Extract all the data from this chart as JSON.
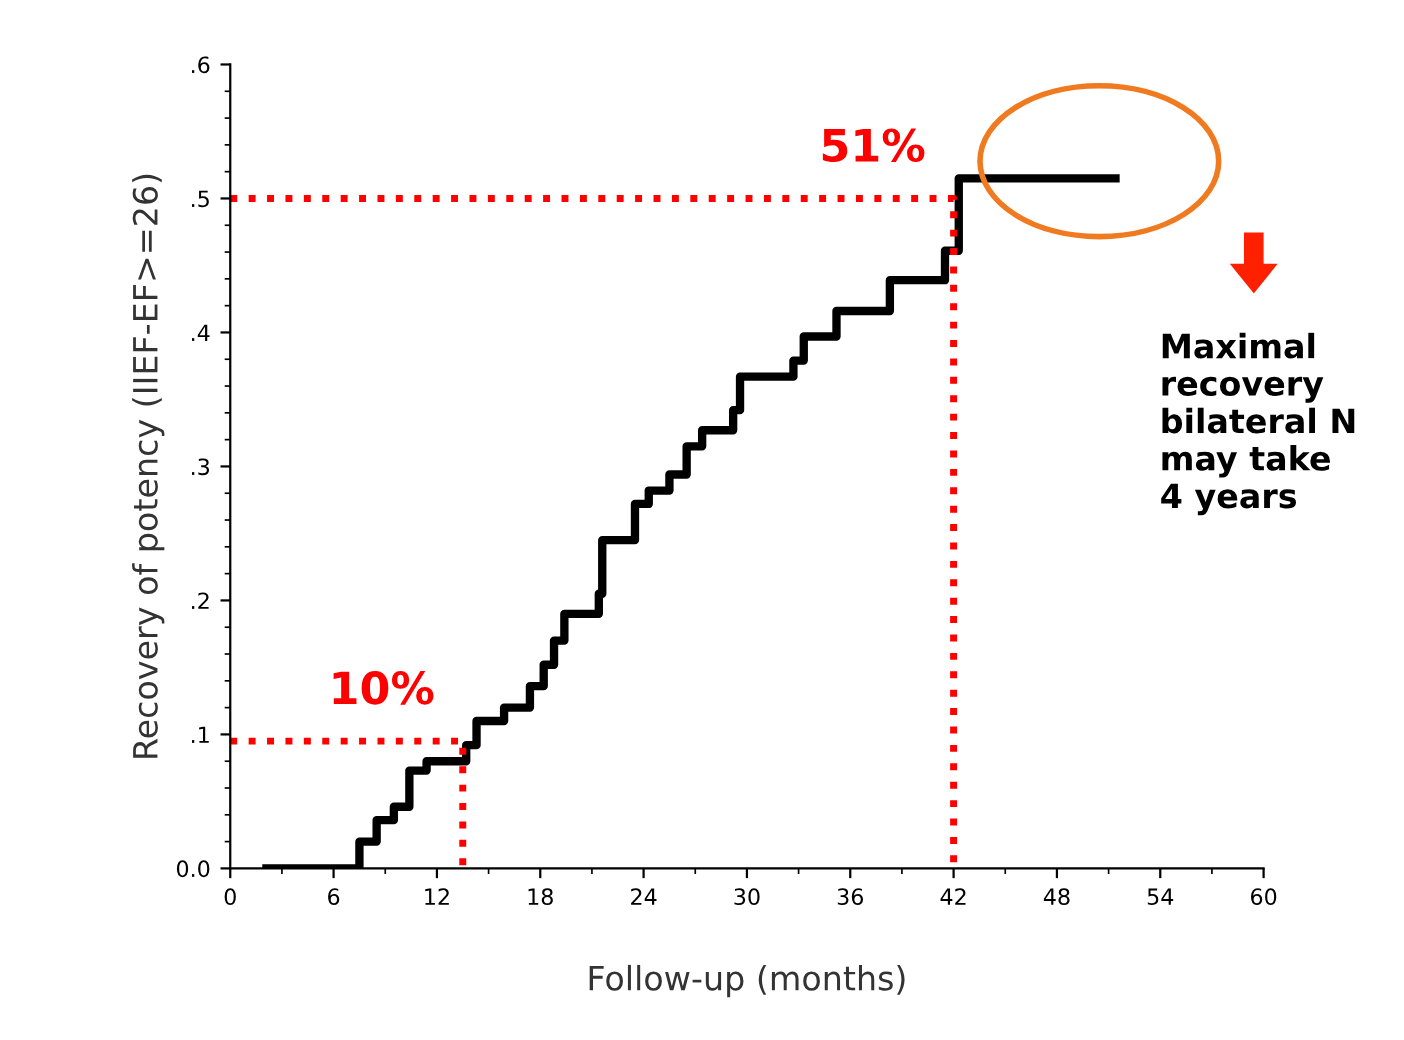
{
  "chart_data": {
    "type": "step",
    "xlabel": "Follow-up (months)",
    "ylabel": "Recovery of potency (IIEF-EF>=26)",
    "xlim": [
      0,
      60
    ],
    "xticks": [
      0,
      6,
      12,
      18,
      24,
      30,
      36,
      42,
      48,
      54,
      60
    ],
    "ylim": [
      0,
      0.6
    ],
    "yticks": [
      {
        "value": 0,
        "label": "0.0"
      },
      {
        "value": 0.1,
        "label": ".1"
      },
      {
        "value": 0.2,
        "label": ".2"
      },
      {
        "value": 0.3,
        "label": ".3"
      },
      {
        "value": 0.4,
        "label": ".4"
      },
      {
        "value": 0.5,
        "label": ".5"
      },
      {
        "value": 0.6,
        "label": ".6"
      }
    ],
    "grid": false,
    "legend": false,
    "series": [
      {
        "color": "#000000",
        "line_style": "solid",
        "x": [
          2.1,
          7.5,
          8.5,
          9.5,
          10.4,
          11.4,
          13.7,
          14.3,
          15.9,
          17.4,
          18.2,
          18.8,
          19.4,
          21.4,
          21.6,
          23.5,
          24.3,
          25.5,
          26.5,
          27.4,
          29.2,
          29.6,
          32.7,
          33.3,
          35.2,
          38.3,
          41.5,
          42.3,
          51.4
        ],
        "values": [
          0,
          0.02,
          0.036,
          0.046,
          0.073,
          0.08,
          0.092,
          0.11,
          0.12,
          0.136,
          0.152,
          0.17,
          0.19,
          0.205,
          0.245,
          0.272,
          0.282,
          0.294,
          0.315,
          0.327,
          0.342,
          0.367,
          0.379,
          0.397,
          0.416,
          0.439,
          0.461,
          0.515,
          0.515
        ]
      },
      {
        "type": "line",
        "color": "#ff0000",
        "line_style": "dotted",
        "x": [
          0,
          13.5,
          13.5
        ],
        "values": [
          0.095,
          0.095,
          0
        ]
      },
      {
        "type": "line",
        "color": "#ff0000",
        "line_style": "dotted",
        "x": [
          0,
          42,
          42
        ],
        "values": [
          0.5,
          0.5,
          0
        ]
      }
    ],
    "annotations": [
      {
        "text": "10%",
        "x": 13.5,
        "y": 0.095
      },
      {
        "text": "51%",
        "x": 42,
        "y": 0.5
      },
      "Maximal\nrecovery\nbilateral N\nmay take\n4 years"
    ]
  }
}
